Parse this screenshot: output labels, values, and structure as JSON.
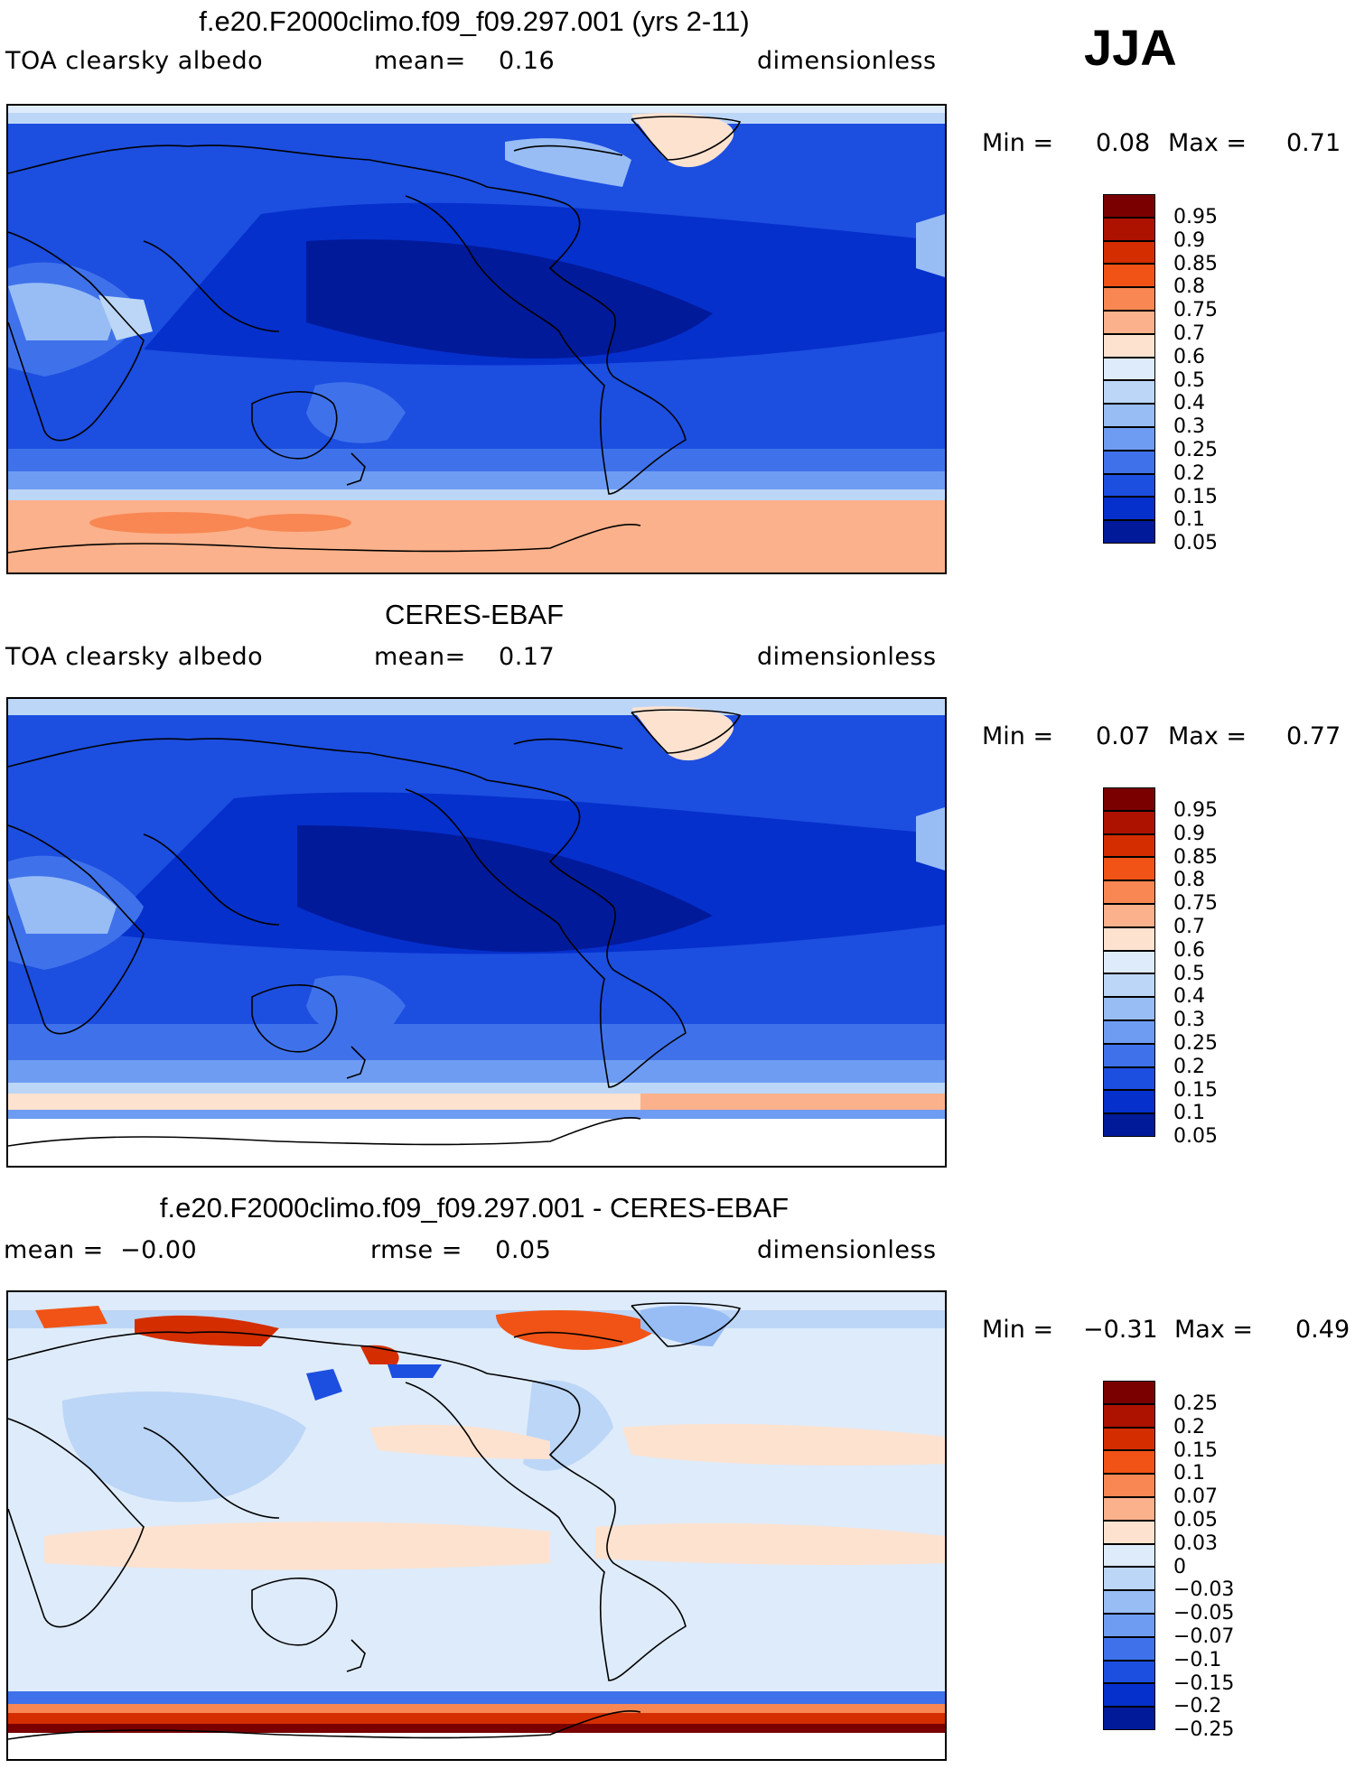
{
  "season": "JJA",
  "panels": [
    {
      "title": "f.e20.F2000climo.f09_f09.297.001 (yrs 2-11)",
      "left_label": "TOA clearsky albedo",
      "center_label": "mean=    0.16",
      "right_label": "dimensionless",
      "min_label": "Min =",
      "min_value": "0.08",
      "max_label": "Max =",
      "max_value": "0.71",
      "colorbar": {
        "colors": [
          "#7a0000",
          "#ad1100",
          "#d42d00",
          "#f05315",
          "#f88753",
          "#fbb18b",
          "#fde2cf",
          "#deebfa",
          "#bcd6f7",
          "#98bdf5",
          "#6e9cf2",
          "#3f72ea",
          "#1c4ee0",
          "#0530cc",
          "#011a9a"
        ],
        "labels": [
          "0.95",
          "0.9",
          "0.85",
          "0.8",
          "0.75",
          "0.7",
          "0.6",
          "0.5",
          "0.4",
          "0.3",
          "0.25",
          "0.2",
          "0.15",
          "0.1",
          "0.05"
        ]
      }
    },
    {
      "title": "CERES-EBAF",
      "left_label": "TOA clearsky albedo",
      "center_label": "mean=    0.17",
      "right_label": "dimensionless",
      "min_label": "Min =",
      "min_value": "0.07",
      "max_label": "Max =",
      "max_value": "0.77",
      "colorbar": {
        "colors": [
          "#7a0000",
          "#ad1100",
          "#d42d00",
          "#f05315",
          "#f88753",
          "#fbb18b",
          "#fde2cf",
          "#deebfa",
          "#bcd6f7",
          "#98bdf5",
          "#6e9cf2",
          "#3f72ea",
          "#1c4ee0",
          "#0530cc",
          "#011a9a"
        ],
        "labels": [
          "0.95",
          "0.9",
          "0.85",
          "0.8",
          "0.75",
          "0.7",
          "0.6",
          "0.5",
          "0.4",
          "0.3",
          "0.25",
          "0.2",
          "0.15",
          "0.1",
          "0.05"
        ]
      }
    },
    {
      "title": "f.e20.F2000climo.f09_f09.297.001 - CERES-EBAF",
      "left_label": "mean =  −0.00",
      "center_label": "rmse =    0.05",
      "right_label": "dimensionless",
      "min_label": "Min =",
      "min_value": "−0.31",
      "max_label": "Max =",
      "max_value": "0.49",
      "colorbar": {
        "colors": [
          "#7a0000",
          "#ad1100",
          "#d42d00",
          "#f05315",
          "#f88753",
          "#fbb18b",
          "#fde2cf",
          "#deebfa",
          "#bcd6f7",
          "#98bdf5",
          "#6e9cf2",
          "#3f72ea",
          "#1c4ee0",
          "#0530cc",
          "#011a9a"
        ],
        "labels": [
          "0.25",
          "0.2",
          "0.15",
          "0.1",
          "0.07",
          "0.05",
          "0.03",
          "0",
          "−0.03",
          "−0.05",
          "−0.07",
          "−0.1",
          "−0.15",
          "−0.2",
          "−0.25"
        ]
      }
    }
  ]
}
